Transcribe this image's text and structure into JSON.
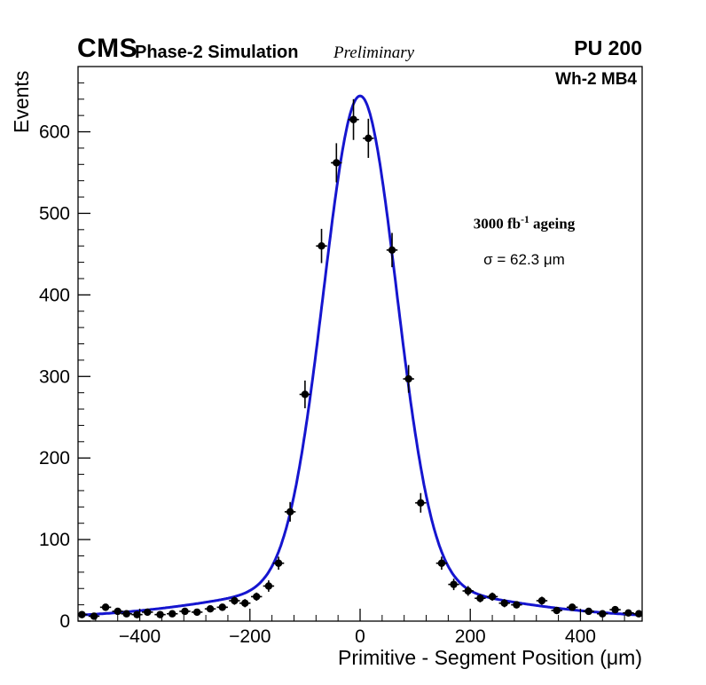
{
  "header": {
    "cms": "CMS",
    "subtitle": "Phase-2 Simulation",
    "preliminary": "Preliminary",
    "pu": "PU 200",
    "region": "Wh-2 MB4"
  },
  "annotations": {
    "lumi_prefix": "3000 fb",
    "lumi_sup": "-1",
    "lumi_suffix": " ageing",
    "sigma": "σ = 62.3 μm"
  },
  "chart_data": {
    "type": "scatter",
    "title": "",
    "xlabel": "Primitive - Segment Position (μm)",
    "ylabel": "Events",
    "xlim": [
      -512,
      512
    ],
    "ylim": [
      0,
      680
    ],
    "x_ticks": [
      -400,
      -200,
      0,
      200,
      400
    ],
    "x_tick_labels": [
      "−400",
      "−200",
      "0",
      "200",
      "400"
    ],
    "x_minor_step": 40,
    "y_ticks": [
      0,
      100,
      200,
      300,
      400,
      500,
      600
    ],
    "y_tick_labels": [
      "0",
      "100",
      "200",
      "300",
      "400",
      "500",
      "600"
    ],
    "y_minor_step": 20,
    "grid": false,
    "legend": null,
    "marker_color": "#000000",
    "curve_color": "#1515cf",
    "fit": {
      "model": "core_gaussian_plus_wide_gaussian_plus_const",
      "a1": 600,
      "sigma1": 66,
      "a2": 40,
      "sigma2": 230,
      "c": 4,
      "sigma_label": "62.3"
    },
    "points": [
      {
        "x": -505,
        "y": 8,
        "xe": 10,
        "ye": 3
      },
      {
        "x": -483,
        "y": 6,
        "xe": 10,
        "ye": 2
      },
      {
        "x": -462,
        "y": 17,
        "xe": 10,
        "ye": 4
      },
      {
        "x": -440,
        "y": 12,
        "xe": 10,
        "ye": 3
      },
      {
        "x": -424,
        "y": 9,
        "xe": 10,
        "ye": 3
      },
      {
        "x": -405,
        "y": 8,
        "xe": 10,
        "ye": 3
      },
      {
        "x": -386,
        "y": 11,
        "xe": 10,
        "ye": 3
      },
      {
        "x": -363,
        "y": 8,
        "xe": 10,
        "ye": 3
      },
      {
        "x": -341,
        "y": 9,
        "xe": 10,
        "ye": 3
      },
      {
        "x": -318,
        "y": 12,
        "xe": 10,
        "ye": 3
      },
      {
        "x": -296,
        "y": 11,
        "xe": 10,
        "ye": 3
      },
      {
        "x": -272,
        "y": 15,
        "xe": 10,
        "ye": 4
      },
      {
        "x": -250,
        "y": 17,
        "xe": 10,
        "ye": 4
      },
      {
        "x": -228,
        "y": 25,
        "xe": 10,
        "ye": 5
      },
      {
        "x": -209,
        "y": 22,
        "xe": 10,
        "ye": 5
      },
      {
        "x": -188,
        "y": 30,
        "xe": 10,
        "ye": 5
      },
      {
        "x": -166,
        "y": 43,
        "xe": 10,
        "ye": 7
      },
      {
        "x": -148,
        "y": 71,
        "xe": 10,
        "ye": 8
      },
      {
        "x": -127,
        "y": 134,
        "xe": 10,
        "ye": 12
      },
      {
        "x": -100,
        "y": 278,
        "xe": 10,
        "ye": 17
      },
      {
        "x": -70,
        "y": 460,
        "xe": 10,
        "ye": 21
      },
      {
        "x": -43,
        "y": 562,
        "xe": 10,
        "ye": 24
      },
      {
        "x": -12,
        "y": 615,
        "xe": 10,
        "ye": 25
      },
      {
        "x": 15,
        "y": 592,
        "xe": 10,
        "ye": 24
      },
      {
        "x": 58,
        "y": 455,
        "xe": 10,
        "ye": 21
      },
      {
        "x": 88,
        "y": 297,
        "xe": 10,
        "ye": 17
      },
      {
        "x": 110,
        "y": 145,
        "xe": 10,
        "ye": 12
      },
      {
        "x": 148,
        "y": 71,
        "xe": 10,
        "ye": 8
      },
      {
        "x": 170,
        "y": 45,
        "xe": 10,
        "ye": 7
      },
      {
        "x": 196,
        "y": 37,
        "xe": 10,
        "ye": 6
      },
      {
        "x": 218,
        "y": 28,
        "xe": 10,
        "ye": 5
      },
      {
        "x": 240,
        "y": 30,
        "xe": 10,
        "ye": 5
      },
      {
        "x": 262,
        "y": 22,
        "xe": 10,
        "ye": 5
      },
      {
        "x": 284,
        "y": 20,
        "xe": 10,
        "ye": 4
      },
      {
        "x": 330,
        "y": 25,
        "xe": 10,
        "ye": 5
      },
      {
        "x": 357,
        "y": 13,
        "xe": 10,
        "ye": 4
      },
      {
        "x": 385,
        "y": 17,
        "xe": 10,
        "ye": 4
      },
      {
        "x": 415,
        "y": 12,
        "xe": 10,
        "ye": 3
      },
      {
        "x": 440,
        "y": 9,
        "xe": 10,
        "ye": 3
      },
      {
        "x": 463,
        "y": 14,
        "xe": 10,
        "ye": 4
      },
      {
        "x": 487,
        "y": 10,
        "xe": 10,
        "ye": 3
      },
      {
        "x": 506,
        "y": 9,
        "xe": 10,
        "ye": 3
      }
    ]
  }
}
